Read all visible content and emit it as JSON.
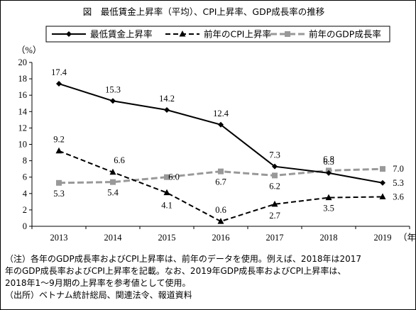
{
  "chart_data": {
    "type": "line",
    "title": "図　最低賃金上昇率（平均）、CPI上昇率、GDP成長率の推移",
    "ylabel": "（%）",
    "xunit": "（年）",
    "ylim": [
      0,
      20
    ],
    "yticks": [
      0,
      2,
      4,
      6,
      8,
      10,
      12,
      14,
      16,
      18,
      20
    ],
    "categories": [
      "2013",
      "2014",
      "2015",
      "2016",
      "2017",
      "2018",
      "2019"
    ],
    "grid": false,
    "legend_position": "top",
    "series": [
      {
        "name": "最低賃金上昇率",
        "values": [
          17.4,
          15.3,
          14.2,
          12.4,
          7.3,
          6.5,
          5.3
        ],
        "labels": [
          "17.4",
          "15.3",
          "14.2",
          "12.4",
          "7.3",
          "6.5",
          "5.3"
        ],
        "color": "#000000",
        "dash": "solid",
        "marker": "diamond"
      },
      {
        "name": "前年のCPI上昇率",
        "values": [
          9.2,
          6.6,
          4.1,
          0.6,
          2.7,
          3.5,
          3.6
        ],
        "labels": [
          "9.2",
          "6.6",
          "4.1",
          "0.6",
          "2.7",
          "3.5",
          "3.6"
        ],
        "color": "#000000",
        "dash": "dashed",
        "marker": "triangle"
      },
      {
        "name": "前年のGDP成長率",
        "values": [
          5.3,
          5.4,
          6.0,
          6.7,
          6.2,
          6.8,
          7.0
        ],
        "labels": [
          "5.3",
          "5.4",
          "6.0",
          "6.7",
          "6.2",
          "6.8",
          "7.0"
        ],
        "color": "#999999",
        "dash": "dashed",
        "marker": "square"
      }
    ]
  },
  "notes": {
    "line1": "（注）各年のGDP成長率およびCPI上昇率は、前年のデータを使用。例えば、2018年は2017",
    "line2": "年のGDP成長率およびCPI上昇率を記載。なお、2019年GDP成長率およびCPI上昇率は、",
    "line3": "2018年1～9月期の上昇率を参考値として使用。",
    "source": "（出所）ベトナム統計総局、関連法令、報道資料"
  }
}
